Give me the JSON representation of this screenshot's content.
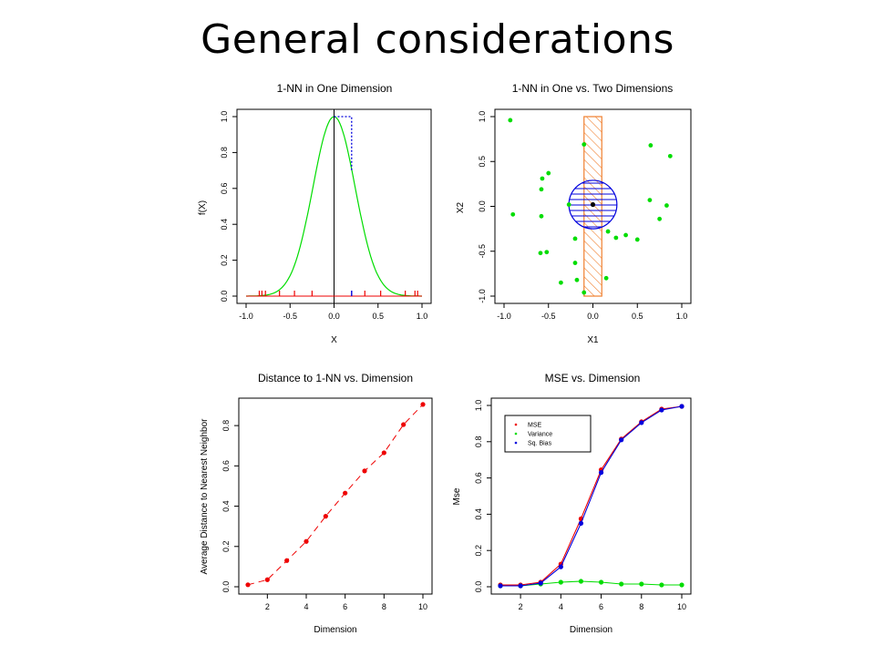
{
  "slide": {
    "title": "General considerations"
  },
  "colors": {
    "green": "#00dd00",
    "red": "#ee0000",
    "blue": "#0000dd",
    "orange": "#f08030",
    "black": "#000000"
  },
  "chart_data": [
    {
      "type": "line",
      "title": "1-NN in One Dimension",
      "xlabel": "X",
      "ylabel": "f(X)",
      "xlim": [
        -1.0,
        1.0
      ],
      "ylim": [
        0.0,
        1.0
      ],
      "xticks": [
        "-1.0",
        "-0.5",
        "0.0",
        "0.5",
        "1.0"
      ],
      "yticks": [
        "0.0",
        "0.2",
        "0.4",
        "0.6",
        "0.8",
        "1.0"
      ],
      "curve": "gaussian",
      "curve_sigma": 0.24,
      "query_x": 0.0,
      "nearest_neighbor_x": 0.2,
      "nearest_neighbor_fx": 0.7,
      "rug_points_red": [
        -0.85,
        -0.82,
        -0.78,
        -0.62,
        -0.45,
        -0.25,
        0.35,
        0.53,
        0.81,
        0.92,
        0.95
      ],
      "rug_point_blue": [
        0.2
      ]
    },
    {
      "type": "scatter",
      "title": "1-NN in One vs. Two Dimensions",
      "xlabel": "X1",
      "ylabel": "X2",
      "xlim": [
        -1.0,
        1.0
      ],
      "ylim": [
        -1.0,
        1.0
      ],
      "xticks": [
        "-1.0",
        "-0.5",
        "0.0",
        "0.5",
        "1.0"
      ],
      "yticks": [
        "-1.0",
        "-0.5",
        "0.0",
        "0.5",
        "1.0"
      ],
      "points": [
        [
          -0.93,
          0.96
        ],
        [
          -0.1,
          0.69
        ],
        [
          0.65,
          0.68
        ],
        [
          0.87,
          0.56
        ],
        [
          -0.5,
          0.37
        ],
        [
          -0.57,
          0.31
        ],
        [
          -0.58,
          0.19
        ],
        [
          -0.27,
          0.02
        ],
        [
          0.64,
          0.07
        ],
        [
          0.83,
          0.01
        ],
        [
          -0.9,
          -0.09
        ],
        [
          -0.58,
          -0.11
        ],
        [
          0.17,
          -0.28
        ],
        [
          -0.2,
          -0.36
        ],
        [
          0.26,
          -0.35
        ],
        [
          0.37,
          -0.32
        ],
        [
          0.5,
          -0.37
        ],
        [
          0.75,
          -0.14
        ],
        [
          -0.59,
          -0.52
        ],
        [
          -0.52,
          -0.51
        ],
        [
          -0.2,
          -0.63
        ],
        [
          -0.18,
          -0.82
        ],
        [
          0.15,
          -0.8
        ],
        [
          -0.36,
          -0.85
        ],
        [
          -0.1,
          -0.96
        ]
      ],
      "center": [
        0.0,
        0.02
      ],
      "circle_radius": 0.27,
      "band_halfwidth": 0.1
    },
    {
      "type": "line",
      "title": "Distance to 1-NN vs. Dimension",
      "xlabel": "Dimension",
      "ylabel": "Average Distance to Nearest Neighbor",
      "xlim": [
        1,
        10
      ],
      "ylim": [
        0.0,
        0.9
      ],
      "xticks": [
        "2",
        "4",
        "6",
        "8",
        "10"
      ],
      "yticks": [
        "0.0",
        "0.2",
        "0.4",
        "0.6",
        "0.8"
      ],
      "x": [
        1,
        2,
        3,
        4,
        5,
        6,
        7,
        8,
        9,
        10
      ],
      "values": [
        0.01,
        0.035,
        0.13,
        0.225,
        0.35,
        0.465,
        0.575,
        0.665,
        0.805,
        0.905
      ]
    },
    {
      "type": "line",
      "title": "MSE vs. Dimension",
      "xlabel": "Dimension",
      "ylabel": "Mse",
      "xlim": [
        1,
        10
      ],
      "ylim": [
        0.0,
        1.0
      ],
      "xticks": [
        "2",
        "4",
        "6",
        "8",
        "10"
      ],
      "yticks": [
        "0.0",
        "0.2",
        "0.4",
        "0.6",
        "0.8",
        "1.0"
      ],
      "x": [
        1,
        2,
        3,
        4,
        5,
        6,
        7,
        8,
        9,
        10
      ],
      "series": [
        {
          "name": "MSE",
          "values": [
            0.01,
            0.01,
            0.025,
            0.125,
            0.375,
            0.645,
            0.815,
            0.91,
            0.98,
            0.995
          ]
        },
        {
          "name": "Variance",
          "values": [
            0.005,
            0.005,
            0.015,
            0.025,
            0.03,
            0.025,
            0.015,
            0.015,
            0.01,
            0.01
          ]
        },
        {
          "name": "Sq. Bias",
          "values": [
            0.005,
            0.005,
            0.02,
            0.11,
            0.35,
            0.63,
            0.81,
            0.905,
            0.975,
            0.995
          ]
        }
      ],
      "legend_position": "top-left"
    }
  ]
}
